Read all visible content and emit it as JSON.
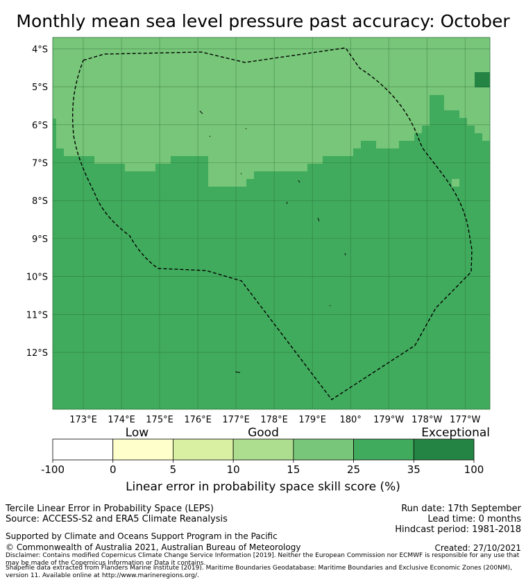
{
  "title": "Monthly mean sea level pressure past accuracy: October",
  "map": {
    "lat_labels": [
      "4°S",
      "5°S",
      "6°S",
      "7°S",
      "8°S",
      "9°S",
      "10°S",
      "11°S",
      "12°S"
    ],
    "lon_labels": [
      "173°E",
      "174°E",
      "175°E",
      "176°E",
      "177°E",
      "178°E",
      "179°E",
      "180°",
      "179°W",
      "178°W",
      "177°W"
    ],
    "extent": {
      "lon_min": 172.2,
      "lon_max": 183.65,
      "lat_north": -3.7,
      "lat_south": -13.5
    },
    "boundary_style": "dashed black (Exclusive Economic Zone)",
    "regions": [
      {
        "name": "Northern area",
        "category": "15–25",
        "color": "#78c679"
      },
      {
        "name": "Southern area",
        "category": "25–35",
        "color": "#41ab5d"
      },
      {
        "name": "North-east cells",
        "category": "35–100",
        "color": "#238443"
      }
    ]
  },
  "colorbar": {
    "category_labels": [
      "Low",
      "Good",
      "Exceptional"
    ],
    "ticks": [
      "-100",
      "0",
      "5",
      "10",
      "15",
      "25",
      "35",
      "100"
    ],
    "colors": [
      "#ffffff",
      "#ffffcc",
      "#d9f0a3",
      "#addd8e",
      "#78c679",
      "#41ab5d",
      "#238443"
    ],
    "label": "Linear error in probability space skill score (%)"
  },
  "footer": {
    "left": [
      "Tercile Linear Error in Probability Space (LEPS)",
      "Source: ACCESS-S2 and ERA5 Climate Reanalysis"
    ],
    "right": [
      "Run date: 17th September",
      "Lead time: 0 months",
      "Hindcast period: 1981-2018"
    ],
    "supported": "Supported by Climate and Oceans Support Program in the Pacific",
    "copyright": "© Commonwealth of Australia 2021, Australian Bureau of Meteorology",
    "created": "Created: 27/10/2021",
    "disclaimer": "Disclaimer: Contains modified Copernicus Climate Change Service Information [2019]. Neither the European Commission nor ECMWF is responsible for any use that may be made of the Copernicus Information or Data it contains.",
    "shapefile": "Shapefile data extracted from Flanders Marine Institute (2019). Maritime Boundaries Geodatabase: Maritime Boundaries and Exclusive Economic Zones (200NM), version 11. Available online at http://www.marineregions.org/."
  }
}
